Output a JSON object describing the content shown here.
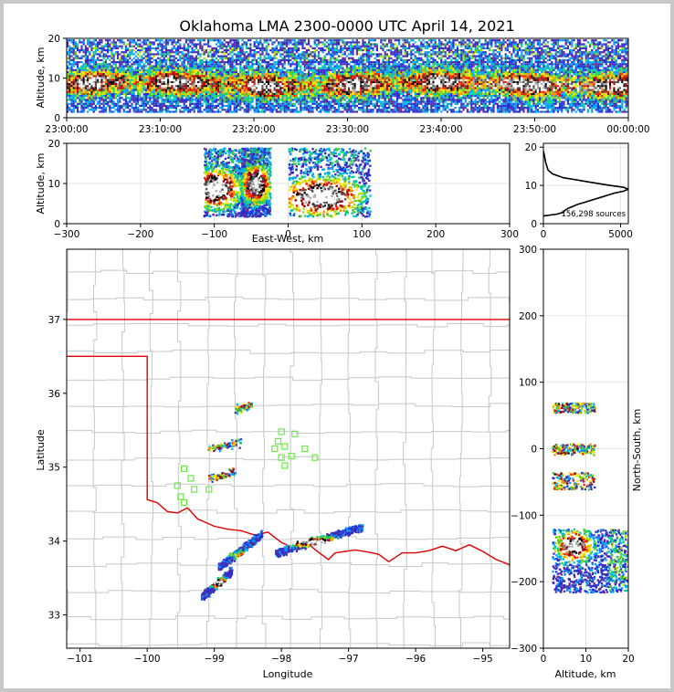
{
  "chart_data": [
    {
      "panel": "altitude-time",
      "type": "heatmap",
      "title": "Oklahoma LMA 2300-0000 UTC April 14, 2021",
      "xlabel": "",
      "ylabel": "Altitude, km",
      "xlim": [
        "23:00:00",
        "00:00:00"
      ],
      "ylim": [
        0,
        20
      ],
      "xticks": [
        "23:00:00",
        "23:10:00",
        "23:20:00",
        "23:30:00",
        "23:40:00",
        "23:50:00",
        "00:00:00"
      ],
      "yticks": [
        0,
        10,
        20
      ],
      "note_core_altitude_km": [
        5,
        12
      ]
    },
    {
      "panel": "altitude-eastwest",
      "type": "heatmap",
      "xlabel": "East-West, km",
      "ylabel": "Altitude, km",
      "xlim": [
        -300,
        300
      ],
      "ylim": [
        0,
        20
      ],
      "xticks": [
        -300,
        -200,
        -100,
        0,
        100,
        200,
        300
      ],
      "yticks": [
        0,
        10,
        20
      ],
      "grid": true,
      "clusters_km": [
        {
          "x": [
            -115,
            -45
          ],
          "peak": [
            -100,
            9
          ]
        },
        {
          "x": [
            -65,
            -25
          ],
          "peak": [
            -45,
            10
          ]
        },
        {
          "x": [
            0,
            110
          ],
          "peak": [
            45,
            7
          ]
        }
      ]
    },
    {
      "panel": "altitude-histogram",
      "type": "line",
      "annotation": "156,298 sources",
      "xlim": [
        0,
        5500
      ],
      "ylim": [
        0,
        21
      ],
      "xticks": [
        0,
        5000
      ],
      "yticks": [
        0,
        10,
        20
      ],
      "grid": true,
      "series": [
        {
          "altitude_km": [
            2,
            2.5,
            3,
            3.5,
            4,
            5,
            6,
            7,
            8,
            8.5,
            9,
            9.5,
            10,
            11,
            12,
            13,
            14,
            16,
            18,
            19
          ],
          "count": [
            0,
            900,
            1300,
            1400,
            1600,
            2200,
            3000,
            3800,
            4600,
            5200,
            5500,
            5200,
            4300,
            2800,
            1300,
            600,
            300,
            150,
            60,
            0
          ]
        }
      ]
    },
    {
      "panel": "plan-view",
      "type": "scatter",
      "xlabel": "Longitude",
      "ylabel": "Latitude",
      "xlim": [
        -101.2,
        -94.6
      ],
      "ylim": [
        32.55,
        37.95
      ],
      "xticks": [
        -101,
        -100,
        -99,
        -98,
        -97,
        -96,
        -95
      ],
      "yticks": [
        33,
        34,
        35,
        36,
        37
      ],
      "colors": {
        "state_border": "#e00000",
        "county_lines": "#c8c8c8",
        "stations": "#66ee44"
      },
      "stations": [
        [
          -98.0,
          35.48
        ],
        [
          -97.8,
          35.45
        ],
        [
          -98.05,
          35.35
        ],
        [
          -97.95,
          35.28
        ],
        [
          -98.1,
          35.25
        ],
        [
          -97.65,
          35.25
        ],
        [
          -97.85,
          35.15
        ],
        [
          -98.0,
          35.13
        ],
        [
          -97.5,
          35.13
        ],
        [
          -97.95,
          35.02
        ],
        [
          -99.45,
          34.98
        ],
        [
          -99.35,
          34.85
        ],
        [
          -99.55,
          34.75
        ],
        [
          -99.3,
          34.7
        ],
        [
          -99.5,
          34.6
        ],
        [
          -99.45,
          34.52
        ],
        [
          -99.08,
          34.7
        ]
      ],
      "storms": [
        {
          "lon": [
            -99.2,
            -98.75
          ],
          "lat": [
            33.25,
            33.6
          ],
          "core": [
            -98.95,
            33.45
          ]
        },
        {
          "lon": [
            -98.95,
            -98.3
          ],
          "lat": [
            33.65,
            34.1
          ],
          "core": [
            -98.45,
            33.82
          ]
        },
        {
          "lon": [
            -98.1,
            -96.8
          ],
          "lat": [
            33.85,
            34.2
          ],
          "core": [
            -97.55,
            34.0
          ]
        },
        {
          "lon": [
            -99.1,
            -98.6
          ],
          "lat": [
            35.25,
            35.35
          ]
        },
        {
          "lon": [
            -99.1,
            -98.7
          ],
          "lat": [
            34.85,
            34.95
          ]
        },
        {
          "lon": [
            -98.7,
            -98.45
          ],
          "lat": [
            35.78,
            35.85
          ]
        }
      ]
    },
    {
      "panel": "northsouth-altitude",
      "type": "heatmap",
      "xlabel": "Altitude, km",
      "ylabel": "North-South, km",
      "xlim": [
        0,
        20
      ],
      "ylim": [
        -300,
        300
      ],
      "xticks": [
        0,
        10,
        20
      ],
      "yticks": [
        -300,
        -200,
        -100,
        0,
        100,
        200
      ],
      "grid": true,
      "clusters_km": [
        {
          "y": [
            -215,
            -120
          ],
          "peak": [
            7,
            -145
          ]
        },
        {
          "y": [
            -60,
            -35
          ]
        },
        {
          "y": [
            -8,
            8
          ]
        },
        {
          "y": [
            55,
            70
          ]
        }
      ]
    }
  ]
}
